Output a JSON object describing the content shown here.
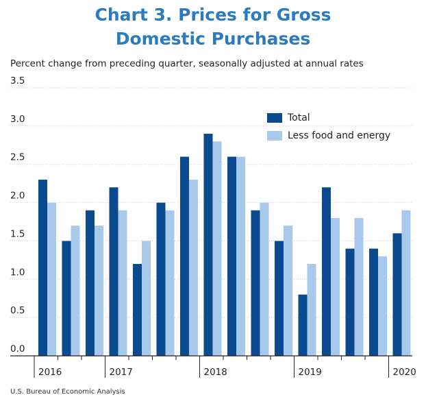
{
  "chart_data": {
    "type": "bar",
    "title": [
      "Chart 3. Prices for Gross",
      "Domestic Purchases"
    ],
    "subtitle": "Percent change from preceding quarter, seasonally adjusted at annual rates",
    "source": "U.S. Bureau of Economic Analysis",
    "categories": [
      "2016",
      null,
      null,
      "2017",
      null,
      null,
      null,
      "2018",
      null,
      null,
      null,
      "2019",
      null,
      null,
      null,
      "2020"
    ],
    "series": [
      {
        "name": "Total",
        "color": "#0b4a8f",
        "values": [
          2.3,
          1.5,
          1.9,
          2.2,
          1.2,
          2.0,
          2.6,
          2.9,
          2.6,
          1.9,
          1.5,
          0.8,
          2.2,
          1.4,
          1.4,
          1.6
        ]
      },
      {
        "name": "Less food and energy",
        "color": "#a9c9ec",
        "values": [
          2.0,
          1.7,
          1.7,
          1.9,
          1.5,
          1.9,
          2.3,
          2.8,
          2.6,
          2.0,
          1.7,
          1.2,
          1.8,
          1.8,
          1.3,
          1.9
        ]
      }
    ],
    "ylim": [
      0,
      3.5
    ],
    "yticks": [
      {
        "value": 0,
        "label": "0.0"
      },
      0.5,
      {
        "value": 1,
        "label": "1.0"
      },
      1.5,
      {
        "value": 2,
        "label": "2.0"
      },
      2.5,
      {
        "value": 3,
        "label": "3.0"
      },
      3.5
    ],
    "grid": true
  }
}
